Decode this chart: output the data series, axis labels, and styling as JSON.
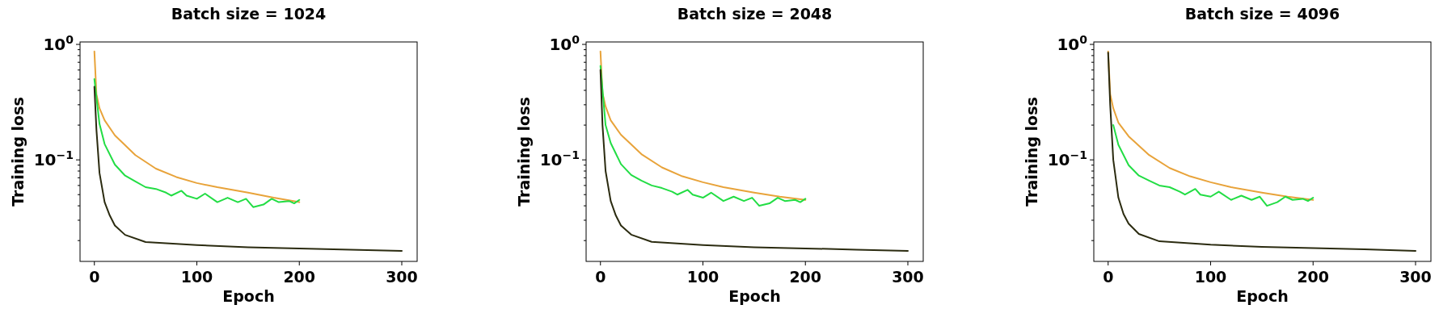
{
  "chart_data": [
    {
      "type": "line",
      "title": "Batch size = 1024",
      "xlabel": "Epoch",
      "ylabel": "Training loss",
      "log": "y",
      "xlim": [
        -14,
        315
      ],
      "xticks": [
        0,
        100,
        200,
        300
      ],
      "ylim": [
        0.0132,
        1.05
      ],
      "yticks": [
        {
          "value": 1,
          "label": "10$^{0}$"
        },
        {
          "value": 0.1,
          "label": "10$^{−1}$"
        },
        {
          "value": 0.02,
          "label": null
        },
        {
          "value": 0.03,
          "label": null
        },
        {
          "value": 0.04,
          "label": null
        },
        {
          "value": 0.05,
          "label": null
        },
        {
          "value": 0.06,
          "label": null
        },
        {
          "value": 0.07,
          "label": null
        },
        {
          "value": 0.08,
          "label": null
        },
        {
          "value": 0.09,
          "label": null
        },
        {
          "value": 0.2,
          "label": null
        },
        {
          "value": 0.3,
          "label": null
        },
        {
          "value": 0.4,
          "label": null
        },
        {
          "value": 0.5,
          "label": null
        },
        {
          "value": 0.6,
          "label": null
        },
        {
          "value": 0.7,
          "label": null
        },
        {
          "value": 0.8,
          "label": null
        },
        {
          "value": 0.9,
          "label": null
        }
      ],
      "series": [
        {
          "color": "#e8a33a",
          "x": [
            0,
            2,
            5,
            10,
            20,
            40,
            60,
            80,
            100,
            120,
            150,
            175,
            200
          ],
          "values": [
            0.87,
            0.37,
            0.28,
            0.22,
            0.163,
            0.11,
            0.084,
            0.071,
            0.063,
            0.058,
            0.052,
            0.047,
            0.043
          ]
        },
        {
          "color": "#22dd44",
          "x": [
            0,
            5,
            10,
            20,
            30,
            40,
            50,
            60,
            70,
            75,
            85,
            90,
            100,
            108,
            120,
            130,
            140,
            148,
            155,
            165,
            173,
            180,
            190,
            195,
            200
          ],
          "values": [
            0.5,
            0.205,
            0.137,
            0.091,
            0.073,
            0.065,
            0.058,
            0.056,
            0.052,
            0.049,
            0.054,
            0.049,
            0.046,
            0.051,
            0.043,
            0.047,
            0.043,
            0.046,
            0.039,
            0.041,
            0.046,
            0.043,
            0.044,
            0.042,
            0.045
          ]
        },
        {
          "color": "#2b2b10",
          "x": [
            0,
            2,
            5,
            10,
            15,
            20,
            30,
            50,
            100,
            150,
            200,
            250,
            300
          ],
          "values": [
            0.43,
            0.183,
            0.077,
            0.043,
            0.033,
            0.027,
            0.0224,
            0.0194,
            0.0183,
            0.0175,
            0.0171,
            0.0167,
            0.0163
          ]
        }
      ]
    },
    {
      "type": "line",
      "title": "Batch size = 2048",
      "xlabel": "Epoch",
      "ylabel": "Training loss",
      "log": "y",
      "xlim": [
        -14,
        315
      ],
      "xticks": [
        0,
        100,
        200,
        300
      ],
      "ylim": [
        0.0132,
        1.05
      ],
      "yticks": [
        {
          "value": 1,
          "label": "10$^{0}$"
        },
        {
          "value": 0.1,
          "label": "10$^{−1}$"
        },
        {
          "value": 0.02,
          "label": null
        },
        {
          "value": 0.03,
          "label": null
        },
        {
          "value": 0.04,
          "label": null
        },
        {
          "value": 0.05,
          "label": null
        },
        {
          "value": 0.06,
          "label": null
        },
        {
          "value": 0.07,
          "label": null
        },
        {
          "value": 0.08,
          "label": null
        },
        {
          "value": 0.09,
          "label": null
        },
        {
          "value": 0.2,
          "label": null
        },
        {
          "value": 0.3,
          "label": null
        },
        {
          "value": 0.4,
          "label": null
        },
        {
          "value": 0.5,
          "label": null
        },
        {
          "value": 0.6,
          "label": null
        },
        {
          "value": 0.7,
          "label": null
        },
        {
          "value": 0.8,
          "label": null
        },
        {
          "value": 0.9,
          "label": null
        }
      ],
      "series": [
        {
          "color": "#e8a33a",
          "x": [
            0,
            2,
            5,
            10,
            20,
            40,
            60,
            80,
            100,
            120,
            150,
            175,
            200
          ],
          "values": [
            0.87,
            0.38,
            0.29,
            0.22,
            0.165,
            0.112,
            0.086,
            0.072,
            0.064,
            0.058,
            0.052,
            0.048,
            0.045
          ]
        },
        {
          "color": "#22dd44",
          "x": [
            0,
            5,
            10,
            20,
            30,
            40,
            50,
            60,
            70,
            75,
            85,
            90,
            100,
            108,
            120,
            130,
            140,
            148,
            155,
            165,
            173,
            180,
            190,
            195,
            200
          ],
          "values": [
            0.65,
            0.2,
            0.14,
            0.092,
            0.074,
            0.066,
            0.06,
            0.057,
            0.053,
            0.05,
            0.055,
            0.05,
            0.047,
            0.052,
            0.044,
            0.048,
            0.044,
            0.047,
            0.04,
            0.042,
            0.047,
            0.044,
            0.045,
            0.043,
            0.046
          ]
        },
        {
          "color": "#2b2b10",
          "x": [
            0,
            2,
            5,
            10,
            15,
            20,
            30,
            50,
            100,
            150,
            200,
            250,
            300
          ],
          "values": [
            0.6,
            0.2,
            0.08,
            0.044,
            0.033,
            0.027,
            0.0225,
            0.0195,
            0.0183,
            0.0175,
            0.0171,
            0.0167,
            0.0163
          ]
        }
      ]
    },
    {
      "type": "line",
      "title": "Batch size = 4096",
      "xlabel": "Epoch",
      "ylabel": "Training loss",
      "log": "y",
      "xlim": [
        -14,
        315
      ],
      "xticks": [
        0,
        100,
        200,
        300
      ],
      "ylim": [
        0.0132,
        1.05
      ],
      "yticks": [
        {
          "value": 1,
          "label": "10$^{0}$"
        },
        {
          "value": 0.1,
          "label": "10$^{−1}$"
        },
        {
          "value": 0.02,
          "label": null
        },
        {
          "value": 0.03,
          "label": null
        },
        {
          "value": 0.04,
          "label": null
        },
        {
          "value": 0.05,
          "label": null
        },
        {
          "value": 0.06,
          "label": null
        },
        {
          "value": 0.07,
          "label": null
        },
        {
          "value": 0.08,
          "label": null
        },
        {
          "value": 0.09,
          "label": null
        },
        {
          "value": 0.2,
          "label": null
        },
        {
          "value": 0.3,
          "label": null
        },
        {
          "value": 0.4,
          "label": null
        },
        {
          "value": 0.5,
          "label": null
        },
        {
          "value": 0.6,
          "label": null
        },
        {
          "value": 0.7,
          "label": null
        },
        {
          "value": 0.8,
          "label": null
        },
        {
          "value": 0.9,
          "label": null
        }
      ],
      "series": [
        {
          "color": "#e8a33a",
          "x": [
            0,
            2,
            5,
            10,
            20,
            40,
            60,
            80,
            100,
            120,
            150,
            175,
            200
          ],
          "values": [
            0.87,
            0.37,
            0.28,
            0.21,
            0.16,
            0.11,
            0.085,
            0.072,
            0.064,
            0.058,
            0.052,
            0.048,
            0.045
          ]
        },
        {
          "color": "#22dd44",
          "x": [
            5,
            10,
            20,
            30,
            40,
            50,
            60,
            70,
            75,
            85,
            90,
            100,
            108,
            120,
            130,
            140,
            148,
            155,
            165,
            173,
            180,
            190,
            195,
            200
          ],
          "values": [
            0.2,
            0.135,
            0.09,
            0.073,
            0.066,
            0.06,
            0.058,
            0.053,
            0.05,
            0.056,
            0.05,
            0.048,
            0.053,
            0.045,
            0.049,
            0.045,
            0.048,
            0.04,
            0.043,
            0.048,
            0.045,
            0.046,
            0.044,
            0.047
          ]
        },
        {
          "color": "#2b2b10",
          "x": [
            0,
            2,
            5,
            10,
            15,
            20,
            30,
            50,
            100,
            150,
            200,
            250,
            300
          ],
          "values": [
            0.85,
            0.3,
            0.1,
            0.047,
            0.034,
            0.028,
            0.0228,
            0.0197,
            0.0184,
            0.0176,
            0.0172,
            0.0168,
            0.0163
          ]
        }
      ]
    }
  ]
}
